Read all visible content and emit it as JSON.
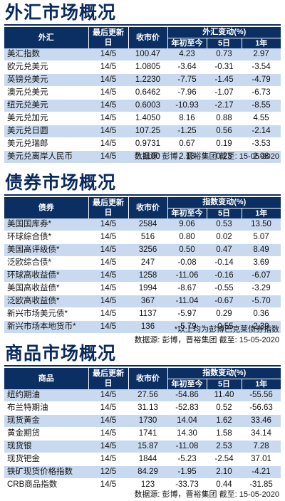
{
  "fx": {
    "title": "外汇市场概况",
    "headers": {
      "name": "外汇",
      "updated": "最后更新日",
      "close": "收市价",
      "change": "外汇变动(%)",
      "ytd": "年初至今",
      "d5": "5日",
      "y1": "1年"
    },
    "rows": [
      {
        "name": "美汇指数",
        "date": "14/5",
        "close": "100.47",
        "ytd": "4.23",
        "d5": "0.73",
        "y1": "2.97"
      },
      {
        "name": "欧元兑美元",
        "date": "14/5",
        "close": "1.0805",
        "ytd": "-3.64",
        "d5": "-0.31",
        "y1": "-3.54"
      },
      {
        "name": "英镑兑美元",
        "date": "14/5",
        "close": "1.2230",
        "ytd": "-7.75",
        "d5": "-1.45",
        "y1": "-4.79"
      },
      {
        "name": "澳元兑美元",
        "date": "14/5",
        "close": "0.6462",
        "ytd": "-7.96",
        "d5": "-1.07",
        "y1": "-6.73"
      },
      {
        "name": "纽元兑美元",
        "date": "14/5",
        "close": "0.6003",
        "ytd": "-10.93",
        "d5": "-2.17",
        "y1": "-8.55"
      },
      {
        "name": "美元兑加元",
        "date": "14/5",
        "close": "1.4050",
        "ytd": "8.16",
        "d5": "0.88",
        "y1": "4.55"
      },
      {
        "name": "美元兑日圆",
        "date": "14/5",
        "close": "107.25",
        "ytd": "-1.25",
        "d5": "0.56",
        "y1": "-2.14"
      },
      {
        "name": "美元兑瑞郎",
        "date": "14/5",
        "close": "0.9731",
        "ytd": "0.67",
        "d5": "0.19",
        "y1": "-3.53"
      },
      {
        "name": "美元兑离岸人民币",
        "date": "14/5",
        "close": "7.1100",
        "ytd": "2.13",
        "d5": "0.23",
        "y1": "2.98"
      }
    ],
    "source": "数据源: 彭博，晋裕集团 截至: 15-05-2020"
  },
  "bond": {
    "title": "债券市场概况",
    "headers": {
      "name": "债券",
      "updated": "最后更新日",
      "close": "收市价",
      "change": "指数变动(%)",
      "ytd": "年初至今",
      "d5": "5日",
      "y1": "1年"
    },
    "rows": [
      {
        "name": "美国国库券*",
        "date": "14/5",
        "close": "2584",
        "ytd": "9.06",
        "d5": "0.53",
        "y1": "13.50"
      },
      {
        "name": "环球综合债*",
        "date": "14/5",
        "close": "516",
        "ytd": "0.80",
        "d5": "0.02",
        "y1": "5.07"
      },
      {
        "name": "美国高评级债*",
        "date": "14/5",
        "close": "3256",
        "ytd": "0.50",
        "d5": "0.47",
        "y1": "8.49"
      },
      {
        "name": "泛欧综合债*",
        "date": "14/5",
        "close": "247",
        "ytd": "-0.08",
        "d5": "-0.14",
        "y1": "3.69"
      },
      {
        "name": "环球高收益债*",
        "date": "14/5",
        "close": "1258",
        "ytd": "-11.06",
        "d5": "-0.16",
        "y1": "-6.07"
      },
      {
        "name": "美国高收益债*",
        "date": "14/5",
        "close": "1994",
        "ytd": "-8.67",
        "d5": "-0.55",
        "y1": "-3.29"
      },
      {
        "name": "泛欧高收益债*",
        "date": "14/5",
        "close": "367",
        "ytd": "-11.04",
        "d5": "-0.67",
        "y1": "-5.70"
      },
      {
        "name": "新兴市场美元债*",
        "date": "14/5",
        "close": "1137",
        "ytd": "-5.97",
        "d5": "0.29",
        "y1": "0.36"
      },
      {
        "name": "新兴市场本地货币*",
        "date": "14/5",
        "close": "136",
        "ytd": "-5.79",
        "d5": "-0.55",
        "y1": "2.39"
      }
    ],
    "note": "*以上均为彭博巴克莱债券指数",
    "source": "数据源: 彭博，晋裕集团 截至: 15-05-2020"
  },
  "commodity": {
    "title": "商品市场概况",
    "headers": {
      "name": "商品",
      "updated": "最后更新日",
      "close": "收市价",
      "change": "指数变动(%)",
      "ytd": "年初至今",
      "d5": "5日",
      "y1": "1年"
    },
    "rows": [
      {
        "name": "纽约期油",
        "date": "14/5",
        "close": "27.56",
        "ytd": "-54.86",
        "d5": "11.40",
        "y1": "-55.56"
      },
      {
        "name": "布兰特期油",
        "date": "14/5",
        "close": "31.13",
        "ytd": "-52.83",
        "d5": "0.52",
        "y1": "-56.63"
      },
      {
        "name": "现货黄金",
        "date": "14/5",
        "close": "1730",
        "ytd": "14.04",
        "d5": "1.62",
        "y1": "33.46"
      },
      {
        "name": "黄金期货",
        "date": "14/5",
        "close": "1741",
        "ytd": "14.30",
        "d5": "1.58",
        "y1": "34.14"
      },
      {
        "name": "现货银",
        "date": "14/5",
        "close": "15.87",
        "ytd": "-11.08",
        "d5": "2.53",
        "y1": "7.28"
      },
      {
        "name": "现货钯金",
        "date": "14/5",
        "close": "1844",
        "ytd": "-5.23",
        "d5": "-2.54",
        "y1": "37.01"
      },
      {
        "name": "铁矿现货价格指数",
        "date": "12/5",
        "close": "84.29",
        "ytd": "-1.95",
        "d5": "2.10",
        "y1": "-4.21"
      },
      {
        "name": "CRB商品指数",
        "date": "14/5",
        "close": "123",
        "ytd": "-33.73",
        "d5": "0.44",
        "y1": "-31.85"
      }
    ],
    "source": "数据源: 彭博，晋裕集团 截至: 15-05-2020"
  }
}
